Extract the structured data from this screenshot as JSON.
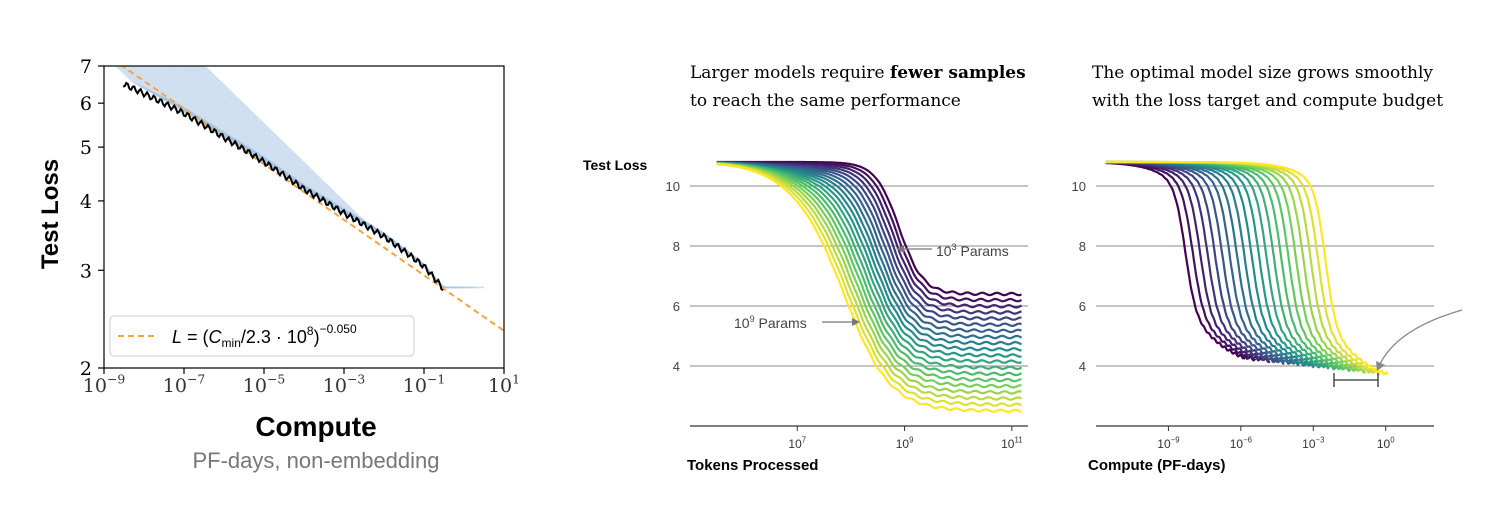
{
  "chart_data": [
    {
      "type": "line",
      "title": "",
      "xlabel": "Compute",
      "xlabel_sub": "PF-days, non-embedding",
      "ylabel": "Test Loss",
      "xscale": "log",
      "yscale": "log",
      "xlim": [
        1e-09,
        10
      ],
      "ylim": [
        2,
        7
      ],
      "x_ticks": [
        "10^-9",
        "10^-7",
        "10^-5",
        "10^-3",
        "10^-1",
        "10^1"
      ],
      "y_ticks": [
        "2",
        "3",
        "4",
        "5",
        "6",
        "7"
      ],
      "legend": {
        "placement": "lower-left",
        "label": "L = (C_min/2.3·10^8)^-0.050",
        "style": "dashed",
        "color": "#f5a442"
      },
      "fit": {
        "formula": "L = (C_min/2.3·10^8)^-0.050",
        "Cc": 230000000.0,
        "alpha": 0.05
      },
      "frontier": {
        "name": "",
        "color": "#000000",
        "x": [
          3e-09,
          1e-07,
          1e-06,
          1e-05,
          0.0001,
          0.001,
          0.01,
          0.1,
          0.3
        ],
        "y": [
          6.5,
          5.75,
          5.2,
          4.7,
          4.2,
          3.8,
          3.45,
          3.05,
          2.78
        ]
      },
      "run_color": "#a9c5e2"
    },
    {
      "type": "line",
      "title": "Larger models require fewer samples to reach the same performance",
      "title_parts": [
        "Larger models require ",
        "fewer samples",
        " to reach the same performance"
      ],
      "xlabel": "Tokens Processed",
      "ylabel": "Test Loss",
      "xscale": "log",
      "xlim": [
        100000.0,
        200000000000.0
      ],
      "ylim": [
        2,
        11.8
      ],
      "x_ticks": [
        "10^7",
        "10^9",
        "10^11"
      ],
      "y_ticks": [
        "4",
        "6",
        "8",
        "10"
      ],
      "grid": "horizontal",
      "annotations": [
        {
          "text": "10^3 Params",
          "points_to": "smallest model"
        },
        {
          "text": "10^9 Params",
          "points_to": "largest model"
        }
      ],
      "series_count": 20,
      "start_loss": 10.8,
      "final_loss_range": [
        2.4,
        6.4
      ],
      "colormap": "viridis"
    },
    {
      "type": "line",
      "title": "The optimal model size grows smoothly with the loss target and compute budget",
      "title_parts": [
        "The optimal model size grows smoothly",
        "with the loss target and compute budget"
      ],
      "xlabel": "Compute (PF-days)",
      "ylabel": "",
      "xscale": "log",
      "xlim": [
        1e-12,
        100.0
      ],
      "ylim": [
        2,
        11.8
      ],
      "x_ticks": [
        "10^-9",
        "10^-6",
        "10^-3",
        "10^0"
      ],
      "y_ticks": [
        "4",
        "6",
        "8",
        "10"
      ],
      "grid": "horizontal",
      "series_count": 20,
      "start_loss": 10.8,
      "colormap": "viridis"
    }
  ]
}
